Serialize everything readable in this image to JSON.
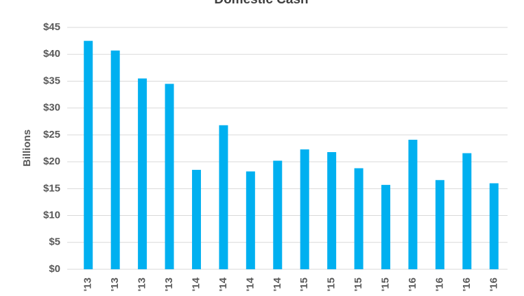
{
  "chart_data": {
    "type": "bar",
    "title": "Domestic Cash",
    "y_label": "Billions",
    "categories": [
      "'13",
      "'13",
      "'13",
      "'13",
      "'14",
      "'14",
      "'14",
      "'14",
      "'15",
      "'15",
      "'15",
      "'15",
      "'16",
      "'16",
      "'16",
      "'16"
    ],
    "values": [
      42.5,
      40.7,
      35.5,
      34.5,
      18.5,
      26.8,
      18.2,
      20.2,
      22.3,
      21.8,
      18.8,
      15.7,
      24.1,
      16.6,
      21.6,
      16.0
    ],
    "color": "#00b0f0",
    "ylim": [
      0,
      45
    ],
    "yticks": [
      {
        "value": 0,
        "label": "$0"
      },
      {
        "value": 5,
        "label": "$5"
      },
      {
        "value": 10,
        "label": "$10"
      },
      {
        "value": 15,
        "label": "$15"
      },
      {
        "value": 20,
        "label": "$20"
      },
      {
        "value": 25,
        "label": "$25"
      },
      {
        "value": 30,
        "label": "$30"
      },
      {
        "value": 35,
        "label": "$35"
      },
      {
        "value": 40,
        "label": "$40"
      },
      {
        "value": 45,
        "label": "$45"
      }
    ],
    "grid": true
  }
}
